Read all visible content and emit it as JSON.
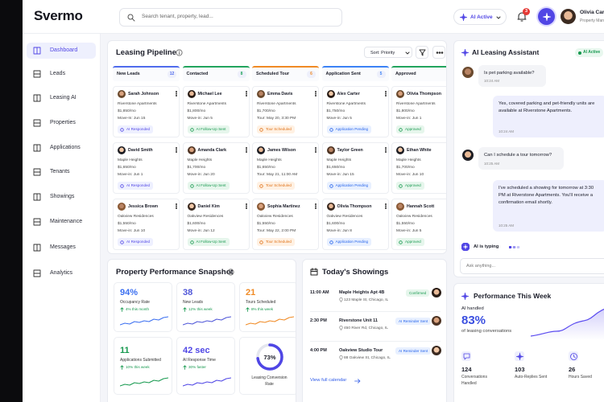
{
  "header": {
    "logo": "Svermo",
    "search_placeholder": "Search tenant, property, lead...",
    "ai_status": "AI Active",
    "notifications": 3,
    "user": {
      "name": "Olivia Carter",
      "role": "Property Manager"
    }
  },
  "sidebar": {
    "items": [
      "Dashboard",
      "Leads",
      "Leasing AI",
      "Properties",
      "Applications",
      "Tenants",
      "Showings",
      "Maintenance",
      "Messages",
      "Analytics"
    ]
  },
  "pipeline": {
    "title": "Leasing Pipeline",
    "sort": "Sort: Priority",
    "columns": [
      {
        "name": "New Leads",
        "count": 12,
        "cards": [
          {
            "name": "Sarah Johnson",
            "property": "Riverstone Apartments",
            "rent": "$1,850/mo",
            "date": "Move-In: Jun 15",
            "status": "AI Responded"
          },
          {
            "name": "David Smith",
            "property": "Maple Heights",
            "rent": "$1,650/mo",
            "date": "Move-in: Jun 1",
            "status": "AI Responded"
          },
          {
            "name": "Jessica Brown",
            "property": "Oakview Residences",
            "rent": "$1,550/mo",
            "date": "Move-in: Jun 10",
            "status": "AI Responded"
          }
        ]
      },
      {
        "name": "Contacted",
        "count": 8,
        "cards": [
          {
            "name": "Michael Lee",
            "property": "Riverstone Apartments",
            "rent": "$1,800/mo",
            "date": "Move-in: Jun 5",
            "status": "AI Follow-Up Sent"
          },
          {
            "name": "Amanda Clark",
            "property": "Maple Heights",
            "rent": "$1,700/mo",
            "date": "Move-in: Jun 20",
            "status": "AI Follow-Up Sent"
          },
          {
            "name": "Daniel Kim",
            "property": "Oakview Residences",
            "rent": "$1,600/mo",
            "date": "Move-in: Jun 12",
            "status": "AI Follow-Up Sent"
          }
        ]
      },
      {
        "name": "Scheduled Tour",
        "count": 6,
        "cards": [
          {
            "name": "Emma Davis",
            "property": "Riverstone Apartments",
            "rent": "$1,700/mo",
            "date": "Tour: May 20, 3:30 PM",
            "status": "Tour Scheduled"
          },
          {
            "name": "James Wilson",
            "property": "Maple Heights",
            "rent": "$1,650/mo",
            "date": "Tour: May 21, 11:00 AM",
            "status": "Tour Scheduled"
          },
          {
            "name": "Sophia Martinez",
            "property": "Oakview Residences",
            "rent": "$1,550/mo",
            "date": "Tour: May 22, 2:00 PM",
            "status": "Tour Scheduled"
          }
        ]
      },
      {
        "name": "Application Sent",
        "count": 5,
        "cards": [
          {
            "name": "Alex Carter",
            "property": "Riverstone Apartments",
            "rent": "$1,750/mo",
            "date": "Move-in: Jun 5",
            "status": "Application Pending"
          },
          {
            "name": "Taylor Green",
            "property": "Maple Heights",
            "rent": "$1,650/mo",
            "date": "Move-in: Jun 15",
            "status": "Application Pending"
          },
          {
            "name": "Olivia Thompson",
            "property": "Oakview Residences",
            "rent": "$1,600/mo",
            "date": "Move-in: Jun 8",
            "status": "Application Pending"
          }
        ]
      },
      {
        "name": "Approved",
        "count": 4,
        "cards": [
          {
            "name": "Olivia Thompson",
            "property": "Riverstone Apartments",
            "rent": "$1,800/mo",
            "date": "Move-in: Jun 1",
            "status": "Approved"
          },
          {
            "name": "Ethan White",
            "property": "Maple Heights",
            "rent": "$1,700/mo",
            "date": "Move-in: Jun 10",
            "status": "Approved"
          },
          {
            "name": "Hannah Scott",
            "property": "Oakview Residences",
            "rent": "$1,550/mo",
            "date": "Move-in: Jun 5",
            "status": "Approved"
          }
        ]
      }
    ]
  },
  "snapshot": {
    "title": "Property Performance Snapshot",
    "metrics": [
      {
        "value": "94%",
        "label": "Occupancy Rate",
        "change": "4% this month"
      },
      {
        "value": "38",
        "label": "New Leads",
        "change": "12% this week"
      },
      {
        "value": "21",
        "label": "Tours Scheduled",
        "change": "8% this week"
      },
      {
        "value": "11",
        "label": "Applications Submitted",
        "change": "10% this week"
      },
      {
        "value": "42 sec",
        "label": "AI Response Time",
        "change": "30% faster"
      }
    ],
    "conversion": {
      "value": "73%",
      "label": "Leasing Conversion Rate"
    }
  },
  "showings": {
    "title": "Today's Showings",
    "items": [
      {
        "time": "11:00 AM",
        "place": "Maple Heights Apt 4B",
        "address": "123 Maple St, Chicago, IL",
        "status": "Confirmed"
      },
      {
        "time": "2:30 PM",
        "place": "Riverstone Unit 11",
        "address": "450 River Rd, Chicago, IL",
        "status": "AI Reminder Sent"
      },
      {
        "time": "4:00 PM",
        "place": "Oakview Studio Tour",
        "address": "88 Oakview St, Chicago, IL",
        "status": "AI Reminder Sent"
      }
    ],
    "link": "View full calendar"
  },
  "assistant": {
    "title": "AI Leasing Assistant",
    "status": "AI Active",
    "messages": [
      {
        "text": "Is pet parking available?",
        "time": "10:24 AM"
      },
      {
        "text": "Yes, covered parking and pet-friendly units are available at Riverstone Apartments.",
        "time": "10:24 AM"
      },
      {
        "text": "Can I schedule a tour tomorrow?",
        "time": "10:25 AM"
      },
      {
        "text": "I've scheduled a showing for tomorrow at 3:30 PM at Riverstone Apartments. You'll receive a confirmation email shortly.",
        "time": "10:25 AM"
      }
    ],
    "typing": "AI is typing",
    "input_placeholder": "Ask anything..."
  },
  "performance": {
    "title": "Performance This Week",
    "handled_label": "AI handled",
    "handled_value": "83%",
    "handled_caption": "of leasing conversations",
    "stats": [
      {
        "value": "124",
        "label": "Conversations Handled"
      },
      {
        "value": "103",
        "label": "Auto-Replies Sent"
      },
      {
        "value": "26",
        "label": "Hours Saved"
      }
    ]
  }
}
